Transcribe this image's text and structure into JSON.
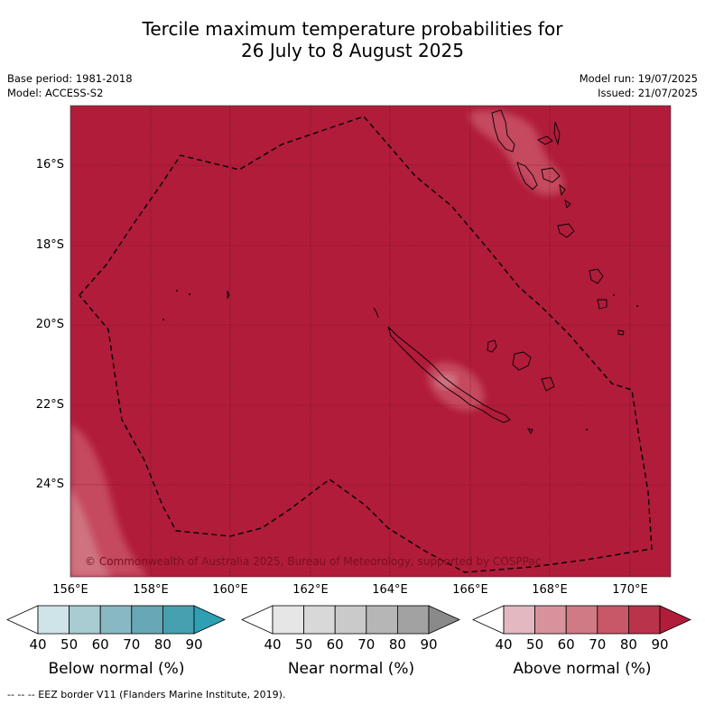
{
  "title_line1": "Tercile maximum temperature probabilities for",
  "title_line2": "26 July to 8 August 2025",
  "base_period": "Base period: 1981-2018",
  "model": "Model: ACCESS-S2",
  "model_run": "Model run: 19/07/2025",
  "issued": "Issued: 21/07/2025",
  "lat_ticks": [
    "16°S",
    "18°S",
    "20°S",
    "22°S",
    "24°S"
  ],
  "lon_ticks": [
    "156°E",
    "158°E",
    "160°E",
    "162°E",
    "164°E",
    "166°E",
    "168°E",
    "170°E"
  ],
  "copyright": "© Commonwealth of Australia 2025, Bureau of Meteorology, supported by COSPPac",
  "colorbars": {
    "ticks": [
      "40",
      "50",
      "60",
      "70",
      "80",
      "90"
    ],
    "below": {
      "label": "Below normal (%)",
      "colors": [
        "#cfe4e8",
        "#a9cbd2",
        "#88b8c3",
        "#68a7b5",
        "#47a0b0"
      ],
      "end_color": "#2fa0b3"
    },
    "near": {
      "label": "Near normal (%)",
      "colors": [
        "#e6e6e6",
        "#d8d8d8",
        "#cacaca",
        "#b6b6b6",
        "#a2a2a2"
      ],
      "end_color": "#8a8a8a"
    },
    "above": {
      "label": "Above normal (%)",
      "colors": [
        "#e3b8c0",
        "#d8929c",
        "#cf7a84",
        "#c85868",
        "#b9344a"
      ],
      "end_color": "#b01c3a"
    }
  },
  "map_colors": {
    "above_90": "#b01c3a",
    "above_80": "#c54a5e",
    "above_70": "#cf7380"
  },
  "footer": "--  --  -- EEZ border V11 (Flanders Marine Institute, 2019)."
}
